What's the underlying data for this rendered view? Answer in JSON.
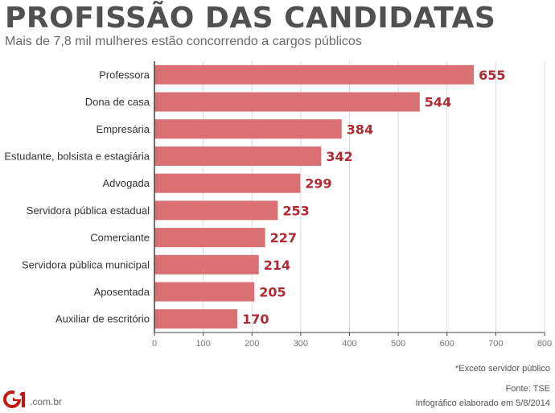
{
  "header": {
    "title": "PROFISSÃO DAS CANDIDATAS",
    "subtitle": "Mais de 7,8 mil mulheres estão concorrendo a cargos públicos"
  },
  "colors": {
    "bar": "#d97074",
    "value_label": "#b02a33",
    "axis": "#444444",
    "grid": "#d9d9d9",
    "brand_red": "#c4170c"
  },
  "chart_data": {
    "type": "bar",
    "orientation": "horizontal",
    "categories": [
      "Professora",
      "Dona de casa",
      "Empresária",
      "Estudante, bolsista e estagiária",
      "Advogada",
      "Servidora pública estadual",
      "Comerciante",
      "Servidora pública municipal",
      "Aposentada",
      "Auxiliar de escritório"
    ],
    "values": [
      655,
      544,
      384,
      342,
      299,
      253,
      227,
      214,
      205,
      170
    ],
    "xlim": [
      0,
      800
    ],
    "xticks": [
      "0",
      "100",
      "200",
      "300",
      "400",
      "500",
      "600",
      "700",
      "800"
    ],
    "grid": true
  },
  "footer": {
    "note": "*Exceto servidor público",
    "source": "Fonte: TSE",
    "credit": "Infográfico elaborado em 5/8/2014",
    "brand_domain": ".com.br",
    "brand_logo_text": "G1"
  }
}
